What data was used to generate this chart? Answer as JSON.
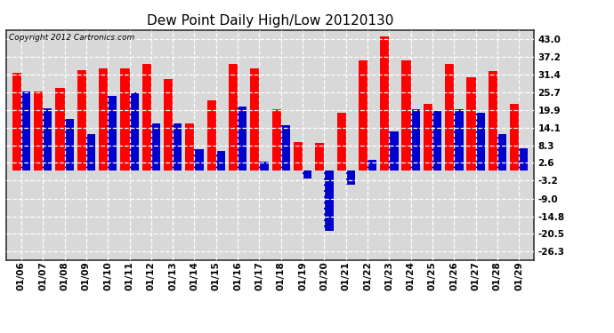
{
  "title": "Dew Point Daily High/Low 20120130",
  "copyright": "Copyright 2012 Cartronics.com",
  "dates": [
    "01/06",
    "01/07",
    "01/08",
    "01/09",
    "01/10",
    "01/11",
    "01/12",
    "01/13",
    "01/14",
    "01/15",
    "01/16",
    "01/17",
    "01/18",
    "01/19",
    "01/20",
    "01/21",
    "01/22",
    "01/23",
    "01/24",
    "01/25",
    "01/26",
    "01/27",
    "01/28",
    "01/29"
  ],
  "highs": [
    32.0,
    26.0,
    27.0,
    33.0,
    33.5,
    33.5,
    35.0,
    30.0,
    15.5,
    23.0,
    35.0,
    33.5,
    20.0,
    9.5,
    9.0,
    19.0,
    36.0,
    44.0,
    36.0,
    22.0,
    35.0,
    30.5,
    32.5,
    22.0
  ],
  "lows": [
    26.0,
    20.5,
    17.0,
    12.0,
    24.5,
    25.5,
    15.5,
    15.5,
    7.0,
    6.5,
    21.0,
    3.0,
    15.0,
    -2.5,
    -19.5,
    -4.5,
    3.5,
    13.0,
    20.0,
    19.5,
    20.0,
    19.0,
    12.0,
    7.5
  ],
  "high_color": "#ff0000",
  "low_color": "#0000cc",
  "bg_color": "#ffffff",
  "grid_color": "#aaaaaa",
  "yticks": [
    43.0,
    37.2,
    31.4,
    25.7,
    19.9,
    14.1,
    8.3,
    2.6,
    -3.2,
    -9.0,
    -14.8,
    -20.5,
    -26.3
  ],
  "ylim": [
    -29,
    46
  ],
  "bar_width": 0.42,
  "title_fontsize": 11,
  "tick_fontsize": 7.5,
  "copyright_fontsize": 6.5
}
